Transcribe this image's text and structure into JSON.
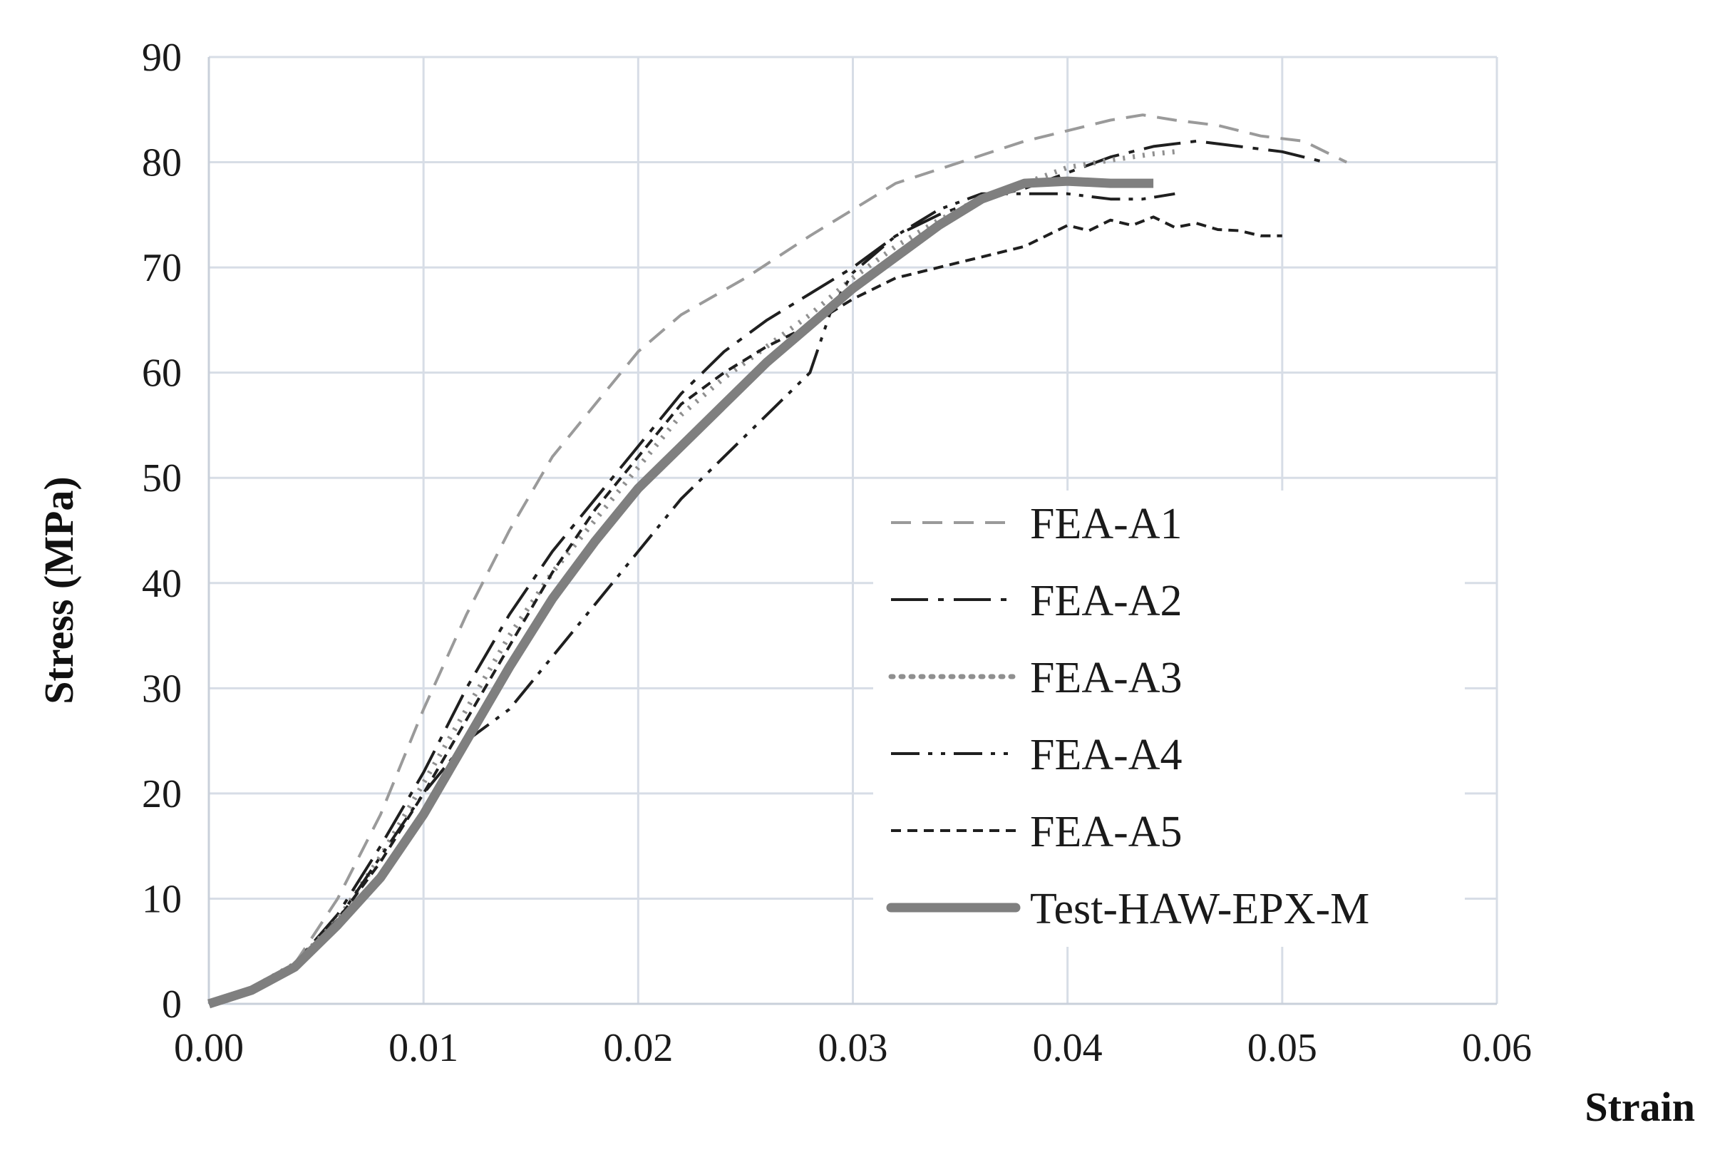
{
  "chart_data": {
    "type": "line",
    "title": "",
    "xlabel": "Strain",
    "ylabel": "Stress  (MPa)",
    "xlim": [
      0,
      0.06
    ],
    "ylim": [
      0,
      90
    ],
    "x_ticks": [
      "0.00",
      "0.01",
      "0.02",
      "0.03",
      "0.04",
      "0.05",
      "0.06"
    ],
    "y_ticks": [
      "0",
      "10",
      "20",
      "30",
      "40",
      "50",
      "60",
      "70",
      "80",
      "90"
    ],
    "grid": true,
    "legend_position": "center-right",
    "series": [
      {
        "name": "FEA-A1",
        "color": "#9a9a9a",
        "dash": "dashed",
        "points": [
          [
            0,
            0
          ],
          [
            0.002,
            1.5
          ],
          [
            0.004,
            3.8
          ],
          [
            0.006,
            10
          ],
          [
            0.008,
            18
          ],
          [
            0.01,
            28
          ],
          [
            0.012,
            37
          ],
          [
            0.014,
            45
          ],
          [
            0.016,
            52
          ],
          [
            0.018,
            57
          ],
          [
            0.02,
            62
          ],
          [
            0.022,
            65.5
          ],
          [
            0.025,
            69
          ],
          [
            0.028,
            73
          ],
          [
            0.03,
            75.5
          ],
          [
            0.032,
            78
          ],
          [
            0.035,
            80
          ],
          [
            0.038,
            82
          ],
          [
            0.04,
            83
          ],
          [
            0.042,
            84
          ],
          [
            0.0435,
            84.5
          ],
          [
            0.045,
            84
          ],
          [
            0.047,
            83.5
          ],
          [
            0.049,
            82.5
          ],
          [
            0.051,
            82
          ],
          [
            0.053,
            80
          ]
        ]
      },
      {
        "name": "FEA-A2",
        "color": "#1f1f1f",
        "dash": "long-dash-dot",
        "points": [
          [
            0,
            0
          ],
          [
            0.002,
            1.5
          ],
          [
            0.004,
            3.8
          ],
          [
            0.006,
            8.5
          ],
          [
            0.008,
            15
          ],
          [
            0.01,
            22
          ],
          [
            0.012,
            30
          ],
          [
            0.014,
            37
          ],
          [
            0.016,
            43
          ],
          [
            0.018,
            48
          ],
          [
            0.02,
            53
          ],
          [
            0.022,
            58
          ],
          [
            0.024,
            62
          ],
          [
            0.026,
            65
          ],
          [
            0.028,
            67.5
          ],
          [
            0.03,
            70
          ],
          [
            0.032,
            73
          ],
          [
            0.034,
            75
          ],
          [
            0.036,
            76.5
          ],
          [
            0.038,
            77.5
          ],
          [
            0.04,
            79
          ],
          [
            0.042,
            80.5
          ],
          [
            0.044,
            81.5
          ],
          [
            0.046,
            82
          ],
          [
            0.048,
            81.5
          ],
          [
            0.05,
            81
          ],
          [
            0.052,
            80
          ]
        ]
      },
      {
        "name": "FEA-A3",
        "color": "#8f8f8f",
        "dash": "dotted",
        "points": [
          [
            0,
            0
          ],
          [
            0.002,
            1.5
          ],
          [
            0.004,
            3.8
          ],
          [
            0.006,
            8
          ],
          [
            0.008,
            14
          ],
          [
            0.01,
            21
          ],
          [
            0.012,
            28
          ],
          [
            0.014,
            35
          ],
          [
            0.016,
            41
          ],
          [
            0.018,
            46
          ],
          [
            0.02,
            51
          ],
          [
            0.022,
            56
          ],
          [
            0.024,
            59.5
          ],
          [
            0.026,
            62.5
          ],
          [
            0.028,
            65.5
          ],
          [
            0.03,
            69
          ],
          [
            0.032,
            72
          ],
          [
            0.034,
            74.5
          ],
          [
            0.036,
            76.5
          ],
          [
            0.038,
            78
          ],
          [
            0.04,
            79.5
          ],
          [
            0.042,
            80.2
          ],
          [
            0.044,
            80.8
          ],
          [
            0.045,
            81
          ]
        ]
      },
      {
        "name": "FEA-A4",
        "color": "#1f1f1f",
        "dash": "dash-dot-dot",
        "points": [
          [
            0,
            0
          ],
          [
            0.002,
            1.5
          ],
          [
            0.004,
            3.8
          ],
          [
            0.006,
            8
          ],
          [
            0.008,
            14
          ],
          [
            0.01,
            20
          ],
          [
            0.012,
            25
          ],
          [
            0.014,
            28
          ],
          [
            0.016,
            33
          ],
          [
            0.018,
            38
          ],
          [
            0.02,
            43
          ],
          [
            0.022,
            48
          ],
          [
            0.024,
            52
          ],
          [
            0.026,
            56
          ],
          [
            0.028,
            60
          ],
          [
            0.029,
            66
          ],
          [
            0.03,
            69.5
          ],
          [
            0.032,
            73
          ],
          [
            0.034,
            75.5
          ],
          [
            0.036,
            77
          ],
          [
            0.038,
            77
          ],
          [
            0.04,
            77
          ],
          [
            0.042,
            76.5
          ],
          [
            0.0435,
            76.5
          ],
          [
            0.045,
            77
          ]
        ]
      },
      {
        "name": "FEA-A5",
        "color": "#1f1f1f",
        "dash": "short-dash",
        "points": [
          [
            0,
            0
          ],
          [
            0.002,
            1.5
          ],
          [
            0.004,
            3.8
          ],
          [
            0.006,
            8
          ],
          [
            0.008,
            13.5
          ],
          [
            0.01,
            20
          ],
          [
            0.012,
            27
          ],
          [
            0.014,
            34
          ],
          [
            0.016,
            41
          ],
          [
            0.018,
            47
          ],
          [
            0.02,
            52
          ],
          [
            0.022,
            57
          ],
          [
            0.024,
            60
          ],
          [
            0.026,
            62.5
          ],
          [
            0.028,
            64.5
          ],
          [
            0.03,
            67
          ],
          [
            0.032,
            69
          ],
          [
            0.034,
            70
          ],
          [
            0.036,
            71
          ],
          [
            0.038,
            72
          ],
          [
            0.04,
            74
          ],
          [
            0.041,
            73.5
          ],
          [
            0.042,
            74.5
          ],
          [
            0.043,
            74
          ],
          [
            0.044,
            74.8
          ],
          [
            0.045,
            73.8
          ],
          [
            0.046,
            74.2
          ],
          [
            0.047,
            73.6
          ],
          [
            0.048,
            73.5
          ],
          [
            0.049,
            73
          ],
          [
            0.05,
            73
          ]
        ]
      },
      {
        "name": "Test-HAW-EPX-M",
        "color": "#7f7f7f",
        "dash": "solid-thick",
        "points": [
          [
            0,
            0
          ],
          [
            0.002,
            1.3
          ],
          [
            0.004,
            3.5
          ],
          [
            0.006,
            7.5
          ],
          [
            0.008,
            12
          ],
          [
            0.01,
            18
          ],
          [
            0.012,
            25
          ],
          [
            0.014,
            32
          ],
          [
            0.016,
            38.5
          ],
          [
            0.018,
            44
          ],
          [
            0.02,
            49
          ],
          [
            0.022,
            53
          ],
          [
            0.024,
            57
          ],
          [
            0.026,
            61
          ],
          [
            0.028,
            64.5
          ],
          [
            0.03,
            68
          ],
          [
            0.032,
            71
          ],
          [
            0.034,
            74
          ],
          [
            0.036,
            76.5
          ],
          [
            0.038,
            78
          ],
          [
            0.04,
            78.2
          ],
          [
            0.042,
            78
          ],
          [
            0.044,
            78
          ]
        ]
      }
    ]
  }
}
